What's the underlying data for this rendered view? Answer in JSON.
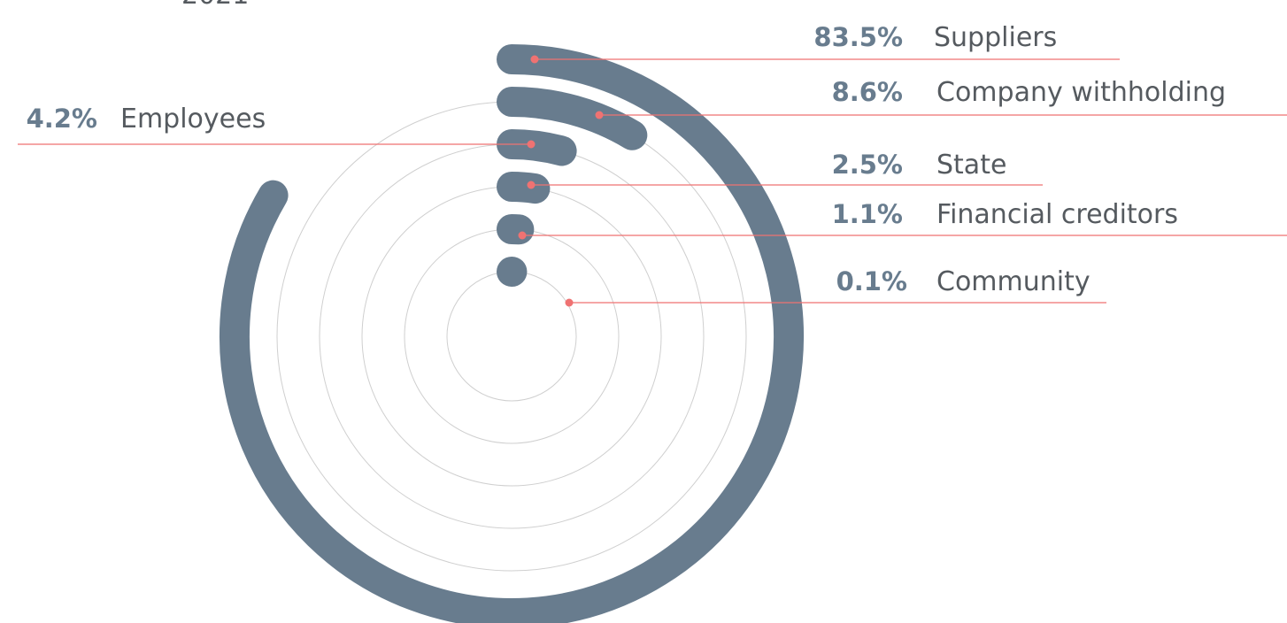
{
  "chart_data": {
    "type": "radial_bar",
    "title": "2021",
    "categories": [
      "Suppliers",
      "Company withholding",
      "Employees",
      "State",
      "Financial creditors",
      "Community"
    ],
    "values": [
      83.5,
      8.6,
      4.2,
      2.5,
      1.1,
      0.1
    ],
    "value_labels": [
      "83.5%",
      "8.6%",
      "4.2%",
      "2.5%",
      "1.1%",
      "0.1%"
    ],
    "color": "#687c8e"
  }
}
